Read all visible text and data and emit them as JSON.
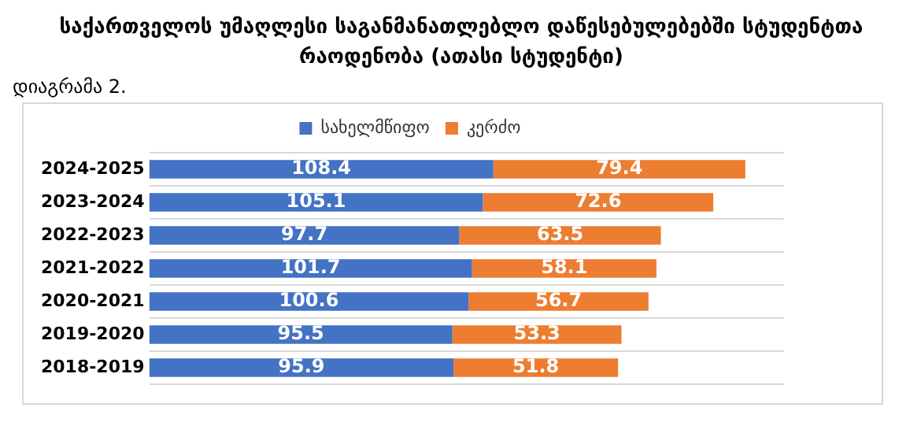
{
  "chart_data": {
    "type": "bar",
    "orientation": "horizontal",
    "stacked": true,
    "title": "საქართველოს უმაღლესი საგანმანათლებლო დაწესებულებებში სტუდენტთა რაოდენობა (ათასი სტუდენტი)",
    "annotations": [
      "დიაგრამა 2."
    ],
    "categories": [
      "2024-2025",
      "2023-2024",
      "2022-2023",
      "2021-2022",
      "2020-2021",
      "2019-2020",
      "2018-2019"
    ],
    "series": [
      {
        "name": "სახელმწიფო",
        "color": "#4472c4",
        "values": [
          108.4,
          105.1,
          97.7,
          101.7,
          100.6,
          95.5,
          95.9
        ]
      },
      {
        "name": "კერძო",
        "color": "#ed7d31",
        "values": [
          79.4,
          72.6,
          63.5,
          58.1,
          56.7,
          53.3,
          51.8
        ]
      }
    ],
    "xlim": [
      0,
      200
    ],
    "tick_labels": "y",
    "grid": "y",
    "legend": "top",
    "data_labels": true
  }
}
